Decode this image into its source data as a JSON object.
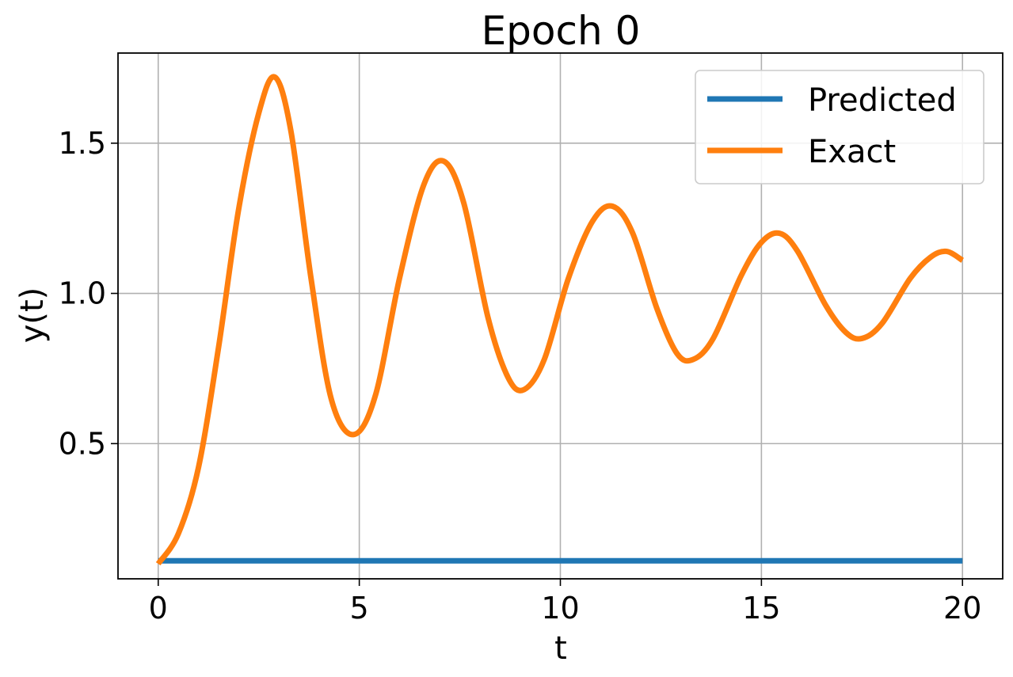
{
  "chart_data": {
    "type": "line",
    "title": "Epoch 0",
    "xlabel": "t",
    "ylabel": "y(t)",
    "xlim": [
      -1,
      21
    ],
    "ylim": [
      0.05,
      1.8
    ],
    "xticks": [
      0,
      5,
      10,
      15,
      20
    ],
    "xtick_labels": [
      "0",
      "5",
      "10",
      "15",
      "20"
    ],
    "yticks": [
      0.5,
      1.0,
      1.5
    ],
    "ytick_labels": [
      "0.5",
      "1.0",
      "1.5"
    ],
    "grid": true,
    "legend_position": "top-right",
    "series": [
      {
        "name": "Predicted",
        "color": "#1f77b4",
        "x": [
          0,
          20
        ],
        "y": [
          0.11,
          0.11
        ]
      },
      {
        "name": "Exact",
        "color": "#ff7f0e",
        "x": [
          0,
          0.5,
          1.0,
          1.5,
          2.0,
          2.5,
          2.9,
          3.3,
          3.8,
          4.3,
          4.85,
          5.4,
          6.0,
          6.6,
          7.1,
          7.6,
          8.2,
          8.7,
          9.1,
          9.6,
          10.2,
          10.8,
          11.3,
          11.8,
          12.4,
          12.9,
          13.3,
          13.8,
          14.5,
          15.0,
          15.45,
          15.9,
          16.6,
          17.1,
          17.5,
          18.0,
          18.7,
          19.2,
          19.6,
          20.0
        ],
        "y": [
          0.1,
          0.2,
          0.42,
          0.82,
          1.28,
          1.6,
          1.72,
          1.54,
          1.05,
          0.65,
          0.53,
          0.66,
          1.05,
          1.36,
          1.44,
          1.3,
          0.92,
          0.72,
          0.68,
          0.78,
          1.05,
          1.24,
          1.29,
          1.2,
          0.95,
          0.8,
          0.78,
          0.85,
          1.06,
          1.17,
          1.2,
          1.14,
          0.96,
          0.87,
          0.85,
          0.9,
          1.05,
          1.12,
          1.14,
          1.11
        ]
      }
    ]
  }
}
